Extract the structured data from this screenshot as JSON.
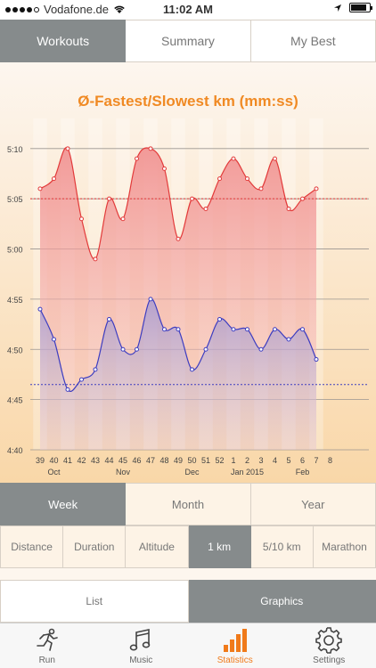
{
  "status": {
    "carrier": "Vodafone.de",
    "time": "11:02 AM"
  },
  "top_tabs": [
    {
      "label": "Workouts",
      "active": true
    },
    {
      "label": "Summary",
      "active": false
    },
    {
      "label": "My Best",
      "active": false
    }
  ],
  "chart_data": {
    "type": "area",
    "title": "Ø-Fastest/Slowest km  (mm:ss)",
    "y_tick_labels": [
      "4:40",
      "4:45",
      "4:50",
      "4:55",
      "5:00",
      "5:05",
      "5:10"
    ],
    "y_ticks_seconds": [
      280,
      285,
      290,
      295,
      300,
      305,
      310
    ],
    "ylim_seconds": [
      280,
      313
    ],
    "x": [
      "39",
      "40",
      "41",
      "42",
      "43",
      "44",
      "45",
      "46",
      "47",
      "48",
      "49",
      "50",
      "51",
      "52",
      "1",
      "2",
      "3",
      "4",
      "5",
      "6",
      "7",
      "8"
    ],
    "month_labels": [
      {
        "text": "Oct",
        "at": "40"
      },
      {
        "text": "Nov",
        "at": "45"
      },
      {
        "text": "Dec",
        "at": "50"
      },
      {
        "text": "Jan 2015",
        "at": "2"
      },
      {
        "text": "Feb",
        "at": "6"
      }
    ],
    "series": [
      {
        "values_seconds": [
          306,
          307,
          310,
          303,
          299,
          305,
          303,
          309,
          310,
          308,
          301,
          305,
          304,
          307,
          309,
          307,
          306,
          309,
          304,
          305,
          306,
          null
        ],
        "color": "#e23a3a"
      },
      {
        "values_seconds": [
          294,
          291,
          286,
          287,
          288,
          293,
          290,
          290,
          295,
          292,
          292,
          288,
          290,
          293,
          292,
          292,
          290,
          292,
          291,
          292,
          289,
          null
        ],
        "color": "#3d3dc0"
      }
    ],
    "averages_seconds": [
      305,
      286.5
    ],
    "grid": true
  },
  "period_tabs": [
    {
      "label": "Week",
      "active": true
    },
    {
      "label": "Month",
      "active": false
    },
    {
      "label": "Year",
      "active": false
    }
  ],
  "metric_tabs": [
    {
      "label": "Distance",
      "active": false
    },
    {
      "label": "Duration",
      "active": false
    },
    {
      "label": "Altitude",
      "active": false
    },
    {
      "label": "1 km",
      "active": true
    },
    {
      "label": "5/10 km",
      "active": false
    },
    {
      "label": "Marathon",
      "active": false
    }
  ],
  "view_tabs": [
    {
      "label": "List",
      "active": false
    },
    {
      "label": "Graphics",
      "active": true
    }
  ],
  "tab_bar": [
    {
      "label": "Run",
      "icon": "runner-icon",
      "active": false
    },
    {
      "label": "Music",
      "icon": "music-note-icon",
      "active": false
    },
    {
      "label": "Statistics",
      "icon": "bar-chart-icon",
      "active": true
    },
    {
      "label": "Settings",
      "icon": "gear-icon",
      "active": false
    }
  ],
  "colors": {
    "accent": "#f07a1a",
    "segment_active": "#868b8c",
    "fastest_line": "#3d3dc0",
    "slowest_line": "#e23a3a"
  }
}
